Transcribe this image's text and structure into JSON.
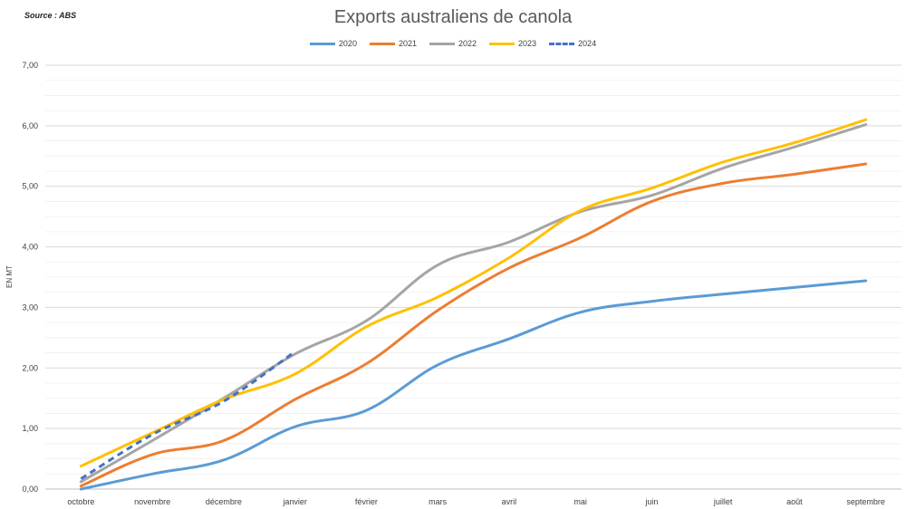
{
  "source": "Source : ABS",
  "chart_data": {
    "type": "line",
    "title": "Exports australiens de canola",
    "xlabel": "",
    "ylabel": "EN MT",
    "ylim": [
      0,
      7
    ],
    "yticks": [
      "0,00",
      "1,00",
      "2,00",
      "3,00",
      "4,00",
      "5,00",
      "6,00",
      "7,00"
    ],
    "categories": [
      "octobre",
      "novembre",
      "décembre",
      "janvier",
      "février",
      "mars",
      "avril",
      "mai",
      "juin",
      "juillet",
      "août",
      "septembre"
    ],
    "grid": true,
    "legend_position": "top-center",
    "series": [
      {
        "name": "2020",
        "color": "#5B9BD5",
        "dashed": false,
        "values": [
          0.0,
          0.25,
          0.48,
          1.03,
          1.3,
          2.05,
          2.48,
          2.92,
          3.1,
          3.22,
          3.33,
          3.44
        ]
      },
      {
        "name": "2021",
        "color": "#ED7D31",
        "dashed": false,
        "values": [
          0.05,
          0.57,
          0.8,
          1.48,
          2.07,
          2.95,
          3.65,
          4.15,
          4.75,
          5.05,
          5.2,
          5.37
        ]
      },
      {
        "name": "2022",
        "color": "#A5A5A5",
        "dashed": false,
        "values": [
          0.12,
          0.8,
          1.5,
          2.23,
          2.78,
          3.7,
          4.08,
          4.58,
          4.85,
          5.3,
          5.65,
          6.02
        ]
      },
      {
        "name": "2023",
        "color": "#FFC000",
        "dashed": false,
        "values": [
          0.38,
          0.93,
          1.48,
          1.9,
          2.68,
          3.17,
          3.82,
          4.6,
          4.97,
          5.4,
          5.72,
          6.1
        ]
      },
      {
        "name": "2024",
        "color": "#4472C4",
        "dashed": true,
        "values": [
          0.17,
          0.9,
          1.45,
          2.27,
          null,
          null,
          null,
          null,
          null,
          null,
          null,
          null
        ]
      }
    ]
  }
}
